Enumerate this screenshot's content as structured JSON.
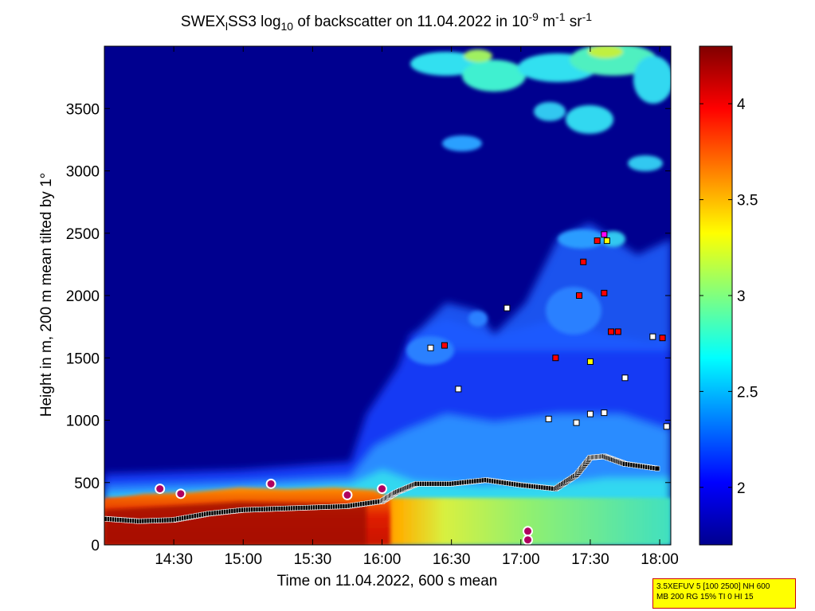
{
  "chart_data": {
    "type": "heatmap",
    "title": {
      "prefix": "SWEX",
      "sub1": "l",
      "mid": "SS3 log",
      "sub2": "10",
      "rest": " of backscatter on 11.04.2022 in 10",
      "sup1": "-9",
      "unit_m": " m",
      "sup2": "-1",
      "unit_sr": " sr",
      "sup3": "-1"
    },
    "xlabel": "Time on 11.04.2022, 600 s mean",
    "ylabel": "Height in m, 200 m mean tilted by 1°",
    "xlim_hours": [
      14.0,
      18.08
    ],
    "ylim": [
      0,
      4000
    ],
    "x_ticks": [
      "14:30",
      "15:00",
      "15:30",
      "16:00",
      "16:30",
      "17:00",
      "17:30",
      "18:00"
    ],
    "x_tick_hours": [
      14.5,
      15.0,
      15.5,
      16.0,
      16.5,
      17.0,
      17.5,
      18.0
    ],
    "y_ticks": [
      0,
      500,
      1000,
      1500,
      2000,
      2500,
      3000,
      3500
    ],
    "colorbar": {
      "range": [
        1.7,
        4.3
      ],
      "ticks": [
        2,
        2.5,
        3,
        3.5,
        4
      ],
      "tick_labels": [
        "2",
        "2.5",
        "3",
        "3.5",
        "4"
      ],
      "colormap": "jet"
    },
    "colormap_stops": [
      "#00008f",
      "#0000ff",
      "#00ffff",
      "#ffff00",
      "#ff0000",
      "#800000"
    ],
    "mixing_layer_height": {
      "x": [
        14.0,
        14.25,
        14.5,
        14.75,
        15.0,
        15.25,
        15.5,
        15.75,
        16.0,
        16.1,
        16.25,
        16.5,
        16.75,
        17.0,
        17.25,
        17.4,
        17.5,
        17.6,
        17.75,
        18.0
      ],
      "y": [
        210,
        190,
        200,
        250,
        280,
        290,
        300,
        310,
        350,
        420,
        490,
        490,
        520,
        480,
        450,
        560,
        700,
        710,
        650,
        610
      ]
    },
    "detections": {
      "black": [
        [
          16.35,
          1580
        ],
        [
          16.55,
          1250
        ],
        [
          16.9,
          1900
        ],
        [
          17.2,
          1010
        ],
        [
          17.4,
          980
        ],
        [
          17.5,
          1050
        ],
        [
          17.6,
          1060
        ],
        [
          17.75,
          1340
        ],
        [
          17.95,
          1670
        ],
        [
          18.05,
          950
        ]
      ],
      "red": [
        [
          16.45,
          1600
        ],
        [
          17.25,
          1500
        ],
        [
          17.42,
          2000
        ],
        [
          17.45,
          2270
        ],
        [
          17.55,
          2440
        ],
        [
          17.6,
          2020
        ],
        [
          17.65,
          1710
        ],
        [
          17.7,
          1710
        ],
        [
          18.02,
          1660
        ]
      ],
      "yellow": [
        [
          17.5,
          1470
        ],
        [
          17.62,
          2440
        ]
      ],
      "magenta": [
        [
          17.6,
          2490
        ]
      ],
      "circles": [
        [
          14.4,
          450
        ],
        [
          14.55,
          410
        ],
        [
          15.2,
          490
        ],
        [
          15.75,
          400
        ],
        [
          16.0,
          450
        ],
        [
          17.05,
          110
        ],
        [
          17.05,
          40
        ]
      ]
    }
  },
  "infobox": {
    "line1": "3.5XEFUV 5 [100 2500] NH 600",
    "line2": "MB 200 RG 15% TI 0 HI 15"
  }
}
